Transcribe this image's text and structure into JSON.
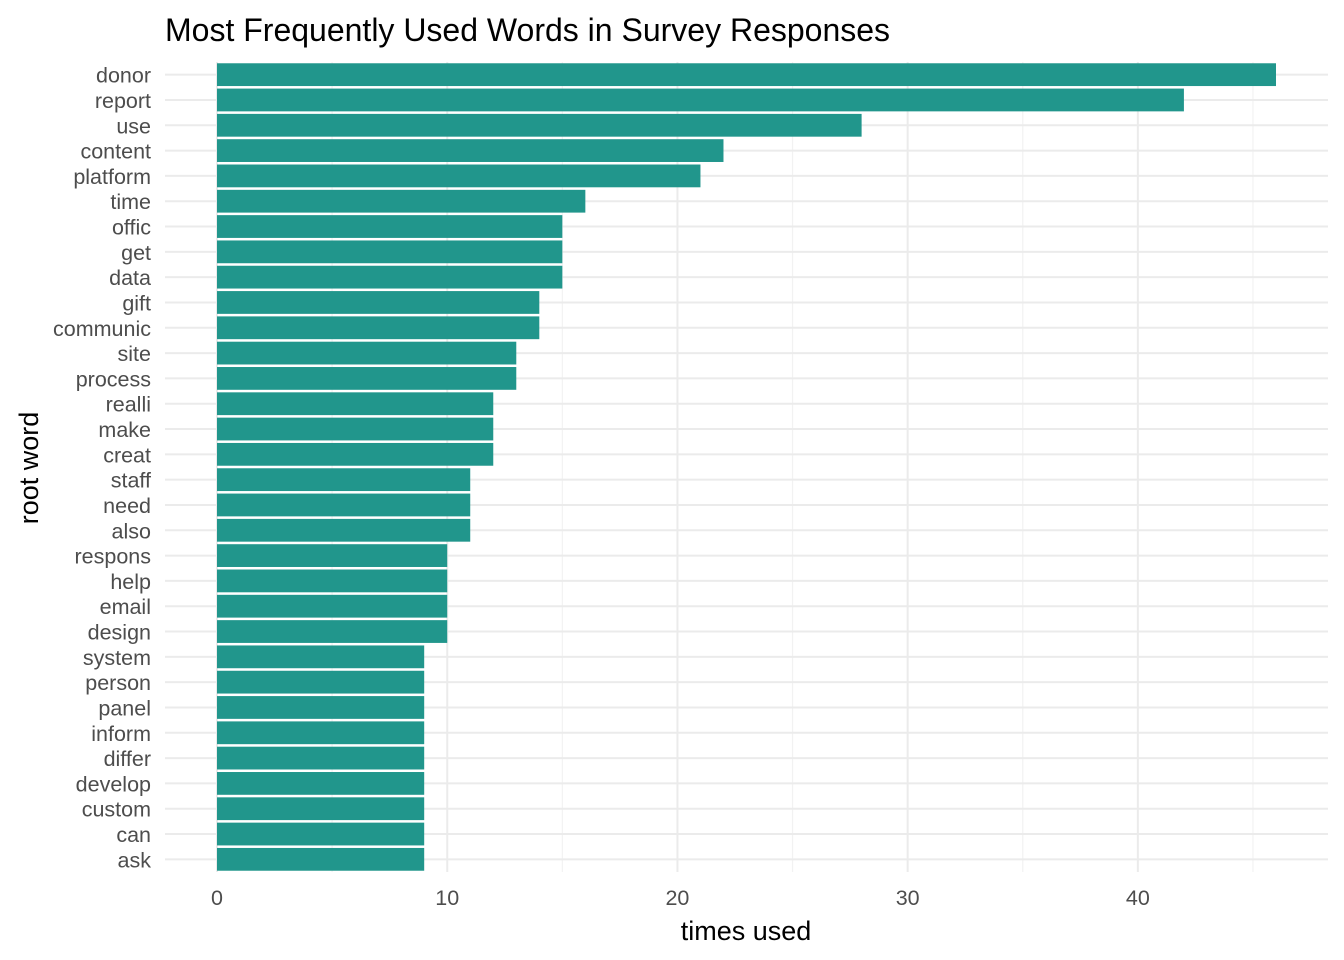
{
  "chart_data": {
    "type": "bar",
    "orientation": "horizontal",
    "title": "Most Frequently Used Words in Survey Responses",
    "xlabel": "times used",
    "ylabel": "root word",
    "bar_color": "#21968C",
    "grid": true,
    "xlim": [
      0,
      46
    ],
    "x_ticks": [
      0,
      10,
      20,
      30,
      40
    ],
    "categories": [
      "donor",
      "report",
      "use",
      "content",
      "platform",
      "time",
      "offic",
      "get",
      "data",
      "gift",
      "communic",
      "site",
      "process",
      "realli",
      "make",
      "creat",
      "staff",
      "need",
      "also",
      "respons",
      "help",
      "email",
      "design",
      "system",
      "person",
      "panel",
      "inform",
      "differ",
      "develop",
      "custom",
      "can",
      "ask"
    ],
    "values": [
      46,
      42,
      28,
      22,
      21,
      16,
      15,
      15,
      15,
      14,
      14,
      13,
      13,
      12,
      12,
      12,
      11,
      11,
      11,
      10,
      10,
      10,
      10,
      9,
      9,
      9,
      9,
      9,
      9,
      9,
      9,
      9
    ]
  }
}
